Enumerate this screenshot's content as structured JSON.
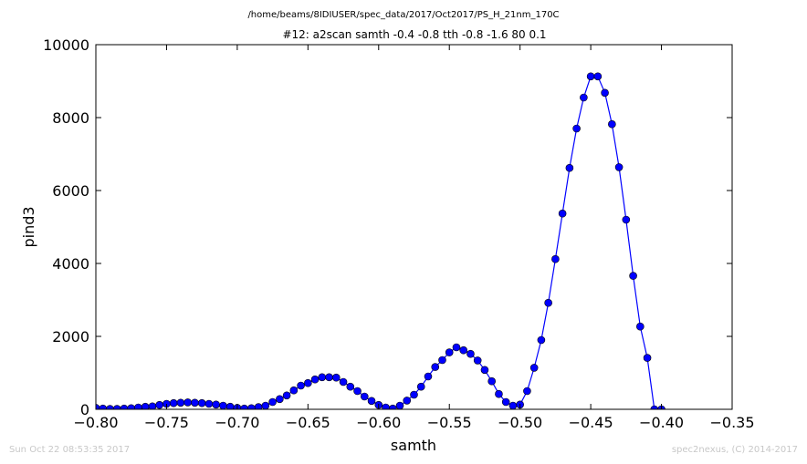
{
  "chart_data": {
    "type": "line",
    "suptitle": "/home/beams/8IDIUSER/spec_data/2017/Oct2017/PS_H_21nm_170C",
    "title": "#12: a2scan  samth -0.4 -0.8  tth -0.8 -1.6  80 0.1",
    "xlabel": "samth",
    "ylabel": "pind3",
    "xlim": [
      -0.8,
      -0.35
    ],
    "ylim": [
      0,
      10000
    ],
    "xticks": [
      -0.8,
      -0.75,
      -0.7,
      -0.65,
      -0.6,
      -0.55,
      -0.5,
      -0.45,
      -0.4,
      -0.35
    ],
    "xtick_labels": [
      "−0.80",
      "−0.75",
      "−0.70",
      "−0.65",
      "−0.60",
      "−0.55",
      "−0.50",
      "−0.45",
      "−0.40",
      "−0.35"
    ],
    "yticks": [
      0,
      2000,
      4000,
      6000,
      8000,
      10000
    ],
    "ytick_labels": [
      "0",
      "2000",
      "4000",
      "6000",
      "8000",
      "10000"
    ],
    "grid": false,
    "line_color": "#0000ff",
    "marker_color": "#0000ff",
    "series": [
      {
        "x": [
          -0.8,
          -0.795,
          -0.79,
          -0.785,
          -0.78,
          -0.775,
          -0.77,
          -0.765,
          -0.76,
          -0.755,
          -0.75,
          -0.745,
          -0.74,
          -0.735,
          -0.73,
          -0.725,
          -0.72,
          -0.715,
          -0.71,
          -0.705,
          -0.7,
          -0.695,
          -0.69,
          -0.685,
          -0.68,
          -0.675,
          -0.67,
          -0.665,
          -0.66,
          -0.655,
          -0.65,
          -0.645,
          -0.64,
          -0.635,
          -0.63,
          -0.625,
          -0.62,
          -0.615,
          -0.61,
          -0.605,
          -0.6,
          -0.595,
          -0.59,
          -0.585,
          -0.58,
          -0.575,
          -0.57,
          -0.565,
          -0.56,
          -0.555,
          -0.55,
          -0.545,
          -0.54,
          -0.535,
          -0.53,
          -0.525,
          -0.52,
          -0.515,
          -0.51,
          -0.505,
          -0.5,
          -0.495,
          -0.49,
          -0.485,
          -0.48,
          -0.475,
          -0.47,
          -0.465,
          -0.46,
          -0.455,
          -0.45,
          -0.445,
          -0.44,
          -0.435,
          -0.43,
          -0.425,
          -0.42,
          -0.415,
          -0.41,
          -0.405,
          -0.4
        ],
        "y": [
          40,
          20,
          10,
          10,
          20,
          30,
          50,
          70,
          80,
          120,
          150,
          170,
          180,
          190,
          180,
          170,
          150,
          130,
          100,
          70,
          40,
          20,
          30,
          60,
          100,
          200,
          280,
          380,
          520,
          650,
          720,
          820,
          880,
          880,
          870,
          750,
          620,
          500,
          350,
          230,
          120,
          50,
          20,
          100,
          240,
          400,
          620,
          900,
          1160,
          1350,
          1560,
          1700,
          1620,
          1520,
          1340,
          1080,
          770,
          420,
          200,
          100,
          130,
          500,
          1140,
          1900,
          2920,
          4120,
          5370,
          6620,
          7700,
          8550,
          9130,
          9130,
          8680,
          7820,
          6640,
          5200,
          3660,
          2270,
          1410,
          0,
          0
        ]
      }
    ]
  },
  "footer": {
    "timestamp": "Sun Oct 22 08:53:35 2017",
    "credit": "spec2nexus, (C) 2014-2017"
  }
}
